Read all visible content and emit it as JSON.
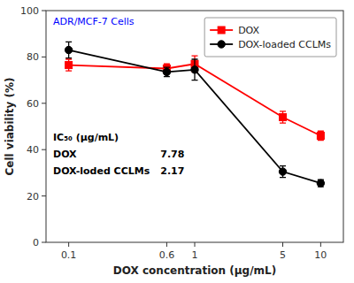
{
  "chart_data": {
    "type": "line",
    "x": [
      0.1,
      0.6,
      1,
      5,
      10
    ],
    "log": "x",
    "xlim": [
      0.06606934480075961,
      15.135612484362087
    ],
    "xticks": [
      0.1,
      0.6,
      1,
      5,
      10
    ],
    "ylim": [
      0,
      100
    ],
    "yticks": [
      0,
      20,
      40,
      60,
      80,
      100
    ],
    "xlabel": "DOX concentration (μg/mL)",
    "ylabel": "Cell viability (%)",
    "grid": false,
    "legend": "upper right",
    "series": [
      {
        "name": "DOX",
        "color": "#FF0000",
        "marker": "square",
        "values": [
          76.5,
          75.0,
          77.0,
          54.0,
          46.0
        ],
        "errors": [
          2.5,
          2.0,
          3.5,
          2.5,
          2.0
        ]
      },
      {
        "name": "DOX-loaded CCLMs",
        "color": "#000000",
        "marker": "circle",
        "values": [
          83.0,
          73.5,
          74.5,
          30.5,
          25.5
        ],
        "errors": [
          3.5,
          2.0,
          4.5,
          2.5,
          1.5
        ]
      }
    ],
    "annotations": [
      {
        "text": "ADR/MCF-7 Cells",
        "color": "#0000FF"
      }
    ],
    "ic50": {
      "header": "IC₅₀ (μg/mL)",
      "rows": [
        {
          "label": "DOX",
          "value": 7.78
        },
        {
          "label": "DOX-loded CCLMs",
          "value": 2.17
        }
      ]
    }
  }
}
